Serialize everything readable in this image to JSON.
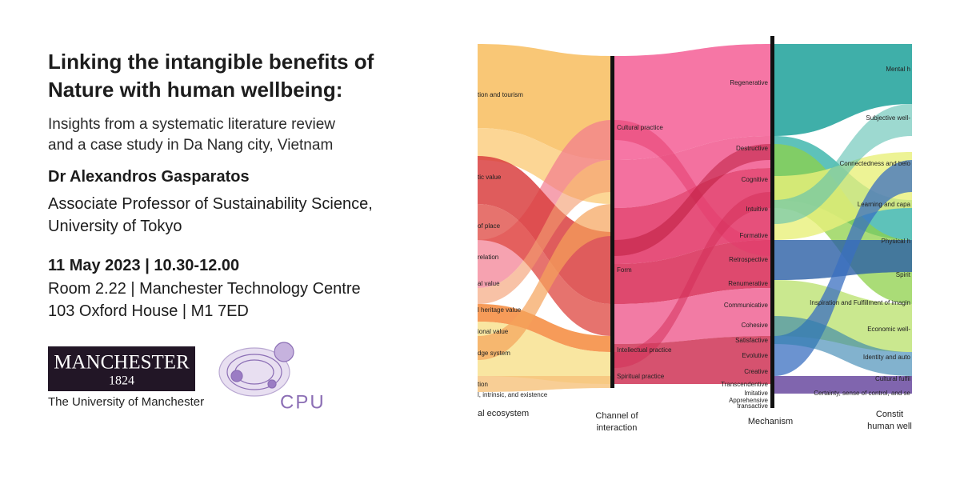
{
  "header": {
    "title": [
      "Linking the intangible benefits of",
      "Nature with human wellbeing:"
    ],
    "subtitle": [
      "Insights from a systematic literature review",
      "and a case study in Da Nang city, Vietnam"
    ]
  },
  "speaker": {
    "name": "Dr Alexandros Gasparatos",
    "role": [
      "Associate Professor of Sustainability Science,",
      "University of Tokyo"
    ]
  },
  "event": {
    "date": "11 May 2023 | 10.30-12.00",
    "venue": [
      "Room 2.22 | Manchester Technology Centre",
      "103 Oxford House | M1 7ED"
    ]
  },
  "logos": {
    "manchester": {
      "wordmark": "MANCHESTER",
      "year": "1824",
      "caption": "The University of Manchester"
    },
    "cpu": "CPU"
  },
  "figure": {
    "ecosystem_labels": [
      "tion and tourism",
      "tic value",
      "of place",
      "relation",
      "al value",
      "l heritage value",
      "ional value",
      "dge system",
      "tion",
      "l, intrinsic, and existence"
    ],
    "channel_labels": [
      "Cultural practice",
      "Form",
      "Intellectual practice",
      "Spiritual practice"
    ],
    "mechanism_labels": [
      "Regenerative",
      "Destructive",
      "Cognitive",
      "Intuitive",
      "Formative",
      "Retrospective",
      "Renumerative",
      "Communicative",
      "Cohesive",
      "Satisfactive",
      "Evolutive",
      "Creative",
      "Transcendentive",
      "Imitative",
      "Apprehensive",
      "transactive"
    ],
    "wellbeing_labels": [
      "Mental h",
      "Subjective well-",
      "Connectedness and belo",
      "Learning and capa",
      "Physical h",
      "Spirit",
      "Inspiration and Fulfillment of imagin",
      "Economic well-",
      "Identity and auto",
      "Cultural fulfil",
      "Certainty, sense of control, and se"
    ],
    "axis_labels": [
      [
        "al ecosystem"
      ],
      [
        "Channel of",
        "interaction"
      ],
      [
        "Mechanism"
      ],
      [
        "Constit",
        "human well"
      ]
    ]
  }
}
